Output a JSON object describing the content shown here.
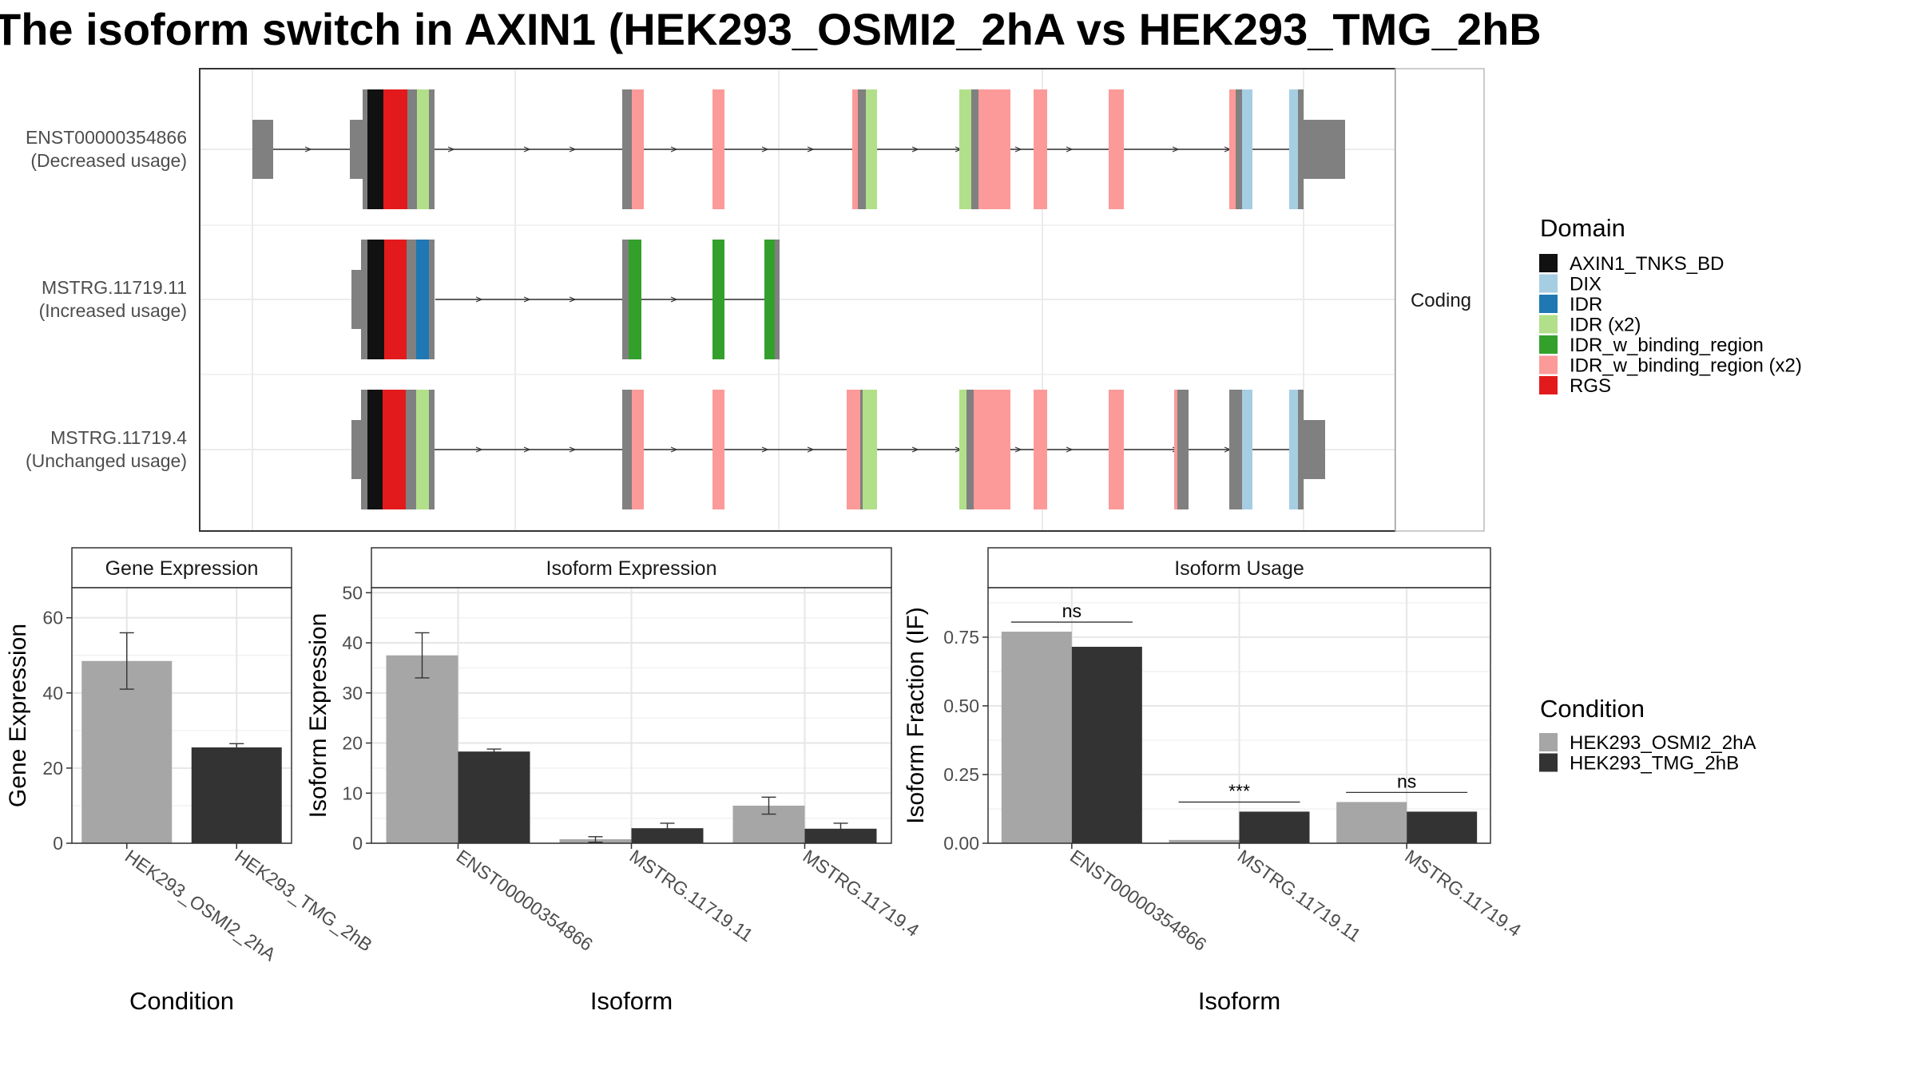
{
  "title": "The isoform switch in AXIN1 (HEK293_OSMI2_2hA vs HEK293_TMG_2hB",
  "colors": {
    "grey_exon": "#808080",
    "cond_a": "#a6a6a6",
    "cond_b": "#333333",
    "domains": {
      "AXIN1_TNKS_BD": "#111111",
      "DIX": "#a6cee3",
      "IDR": "#1f78b4",
      "IDR (x2)": "#b2df8a",
      "IDR_w_binding_region": "#33a02c",
      "IDR_w_binding_region (x2)": "#fb9a99",
      "RGS": "#e31a1c"
    }
  },
  "structure": {
    "facet_label": "Coding",
    "isoforms": [
      {
        "id": "ENST00000354866",
        "usage": "(Decreased usage)"
      },
      {
        "id": "MSTRG.11719.11",
        "usage": "(Increased usage)"
      },
      {
        "id": "MSTRG.11719.4",
        "usage": "(Unchanged usage)"
      }
    ]
  },
  "legend_domain": {
    "title": "Domain",
    "items": [
      "AXIN1_TNKS_BD",
      "DIX",
      "IDR",
      "IDR (x2)",
      "IDR_w_binding_region",
      "IDR_w_binding_region (x2)",
      "RGS"
    ]
  },
  "legend_condition": {
    "title": "Condition",
    "items": [
      "HEK293_OSMI2_2hA",
      "HEK293_TMG_2hB"
    ]
  },
  "chart_data": [
    {
      "type": "bar",
      "title": "Gene Expression",
      "xlabel": "Condition",
      "ylabel": "Gene Expression",
      "ylim": [
        0,
        68
      ],
      "yticks": [
        0,
        20,
        40,
        60
      ],
      "categories": [
        "HEK293_OSMI2_2hA",
        "HEK293_TMG_2hB"
      ],
      "values": [
        48.5,
        25.5
      ],
      "errors": [
        [
          41,
          56
        ],
        [
          24.5,
          26.5
        ]
      ]
    },
    {
      "type": "bar",
      "title": "Isoform Expression",
      "xlabel": "Isoform",
      "ylabel": "Isoform Expression",
      "ylim": [
        0,
        51
      ],
      "yticks": [
        0,
        10,
        20,
        30,
        40,
        50
      ],
      "categories": [
        "ENST00000354866",
        "MSTRG.11719.11",
        "MSTRG.11719.4"
      ],
      "series": [
        {
          "name": "HEK293_OSMI2_2hA",
          "values": [
            37.5,
            0.8,
            7.5
          ],
          "errors": [
            [
              33,
              42
            ],
            [
              0.2,
              1.3
            ],
            [
              5.8,
              9.2
            ]
          ]
        },
        {
          "name": "HEK293_TMG_2hB",
          "values": [
            18.3,
            3.0,
            2.9
          ],
          "errors": [
            [
              17.8,
              18.8
            ],
            [
              2.2,
              4.0
            ],
            [
              2.0,
              4.0
            ]
          ]
        }
      ]
    },
    {
      "type": "bar",
      "title": "Isoform Usage",
      "xlabel": "Isoform",
      "ylabel": "Isoform Fraction (IF)",
      "ylim": [
        0,
        0.93
      ],
      "yticks": [
        "0.00",
        "0.25",
        "0.50",
        "0.75"
      ],
      "categories": [
        "ENST00000354866",
        "MSTRG.11719.11",
        "MSTRG.11719.4"
      ],
      "series": [
        {
          "name": "HEK293_OSMI2_2hA",
          "values": [
            0.77,
            0.012,
            0.15
          ]
        },
        {
          "name": "HEK293_TMG_2hB",
          "values": [
            0.715,
            0.115,
            0.115
          ]
        }
      ],
      "significance": [
        "ns",
        "***",
        "ns"
      ]
    }
  ]
}
